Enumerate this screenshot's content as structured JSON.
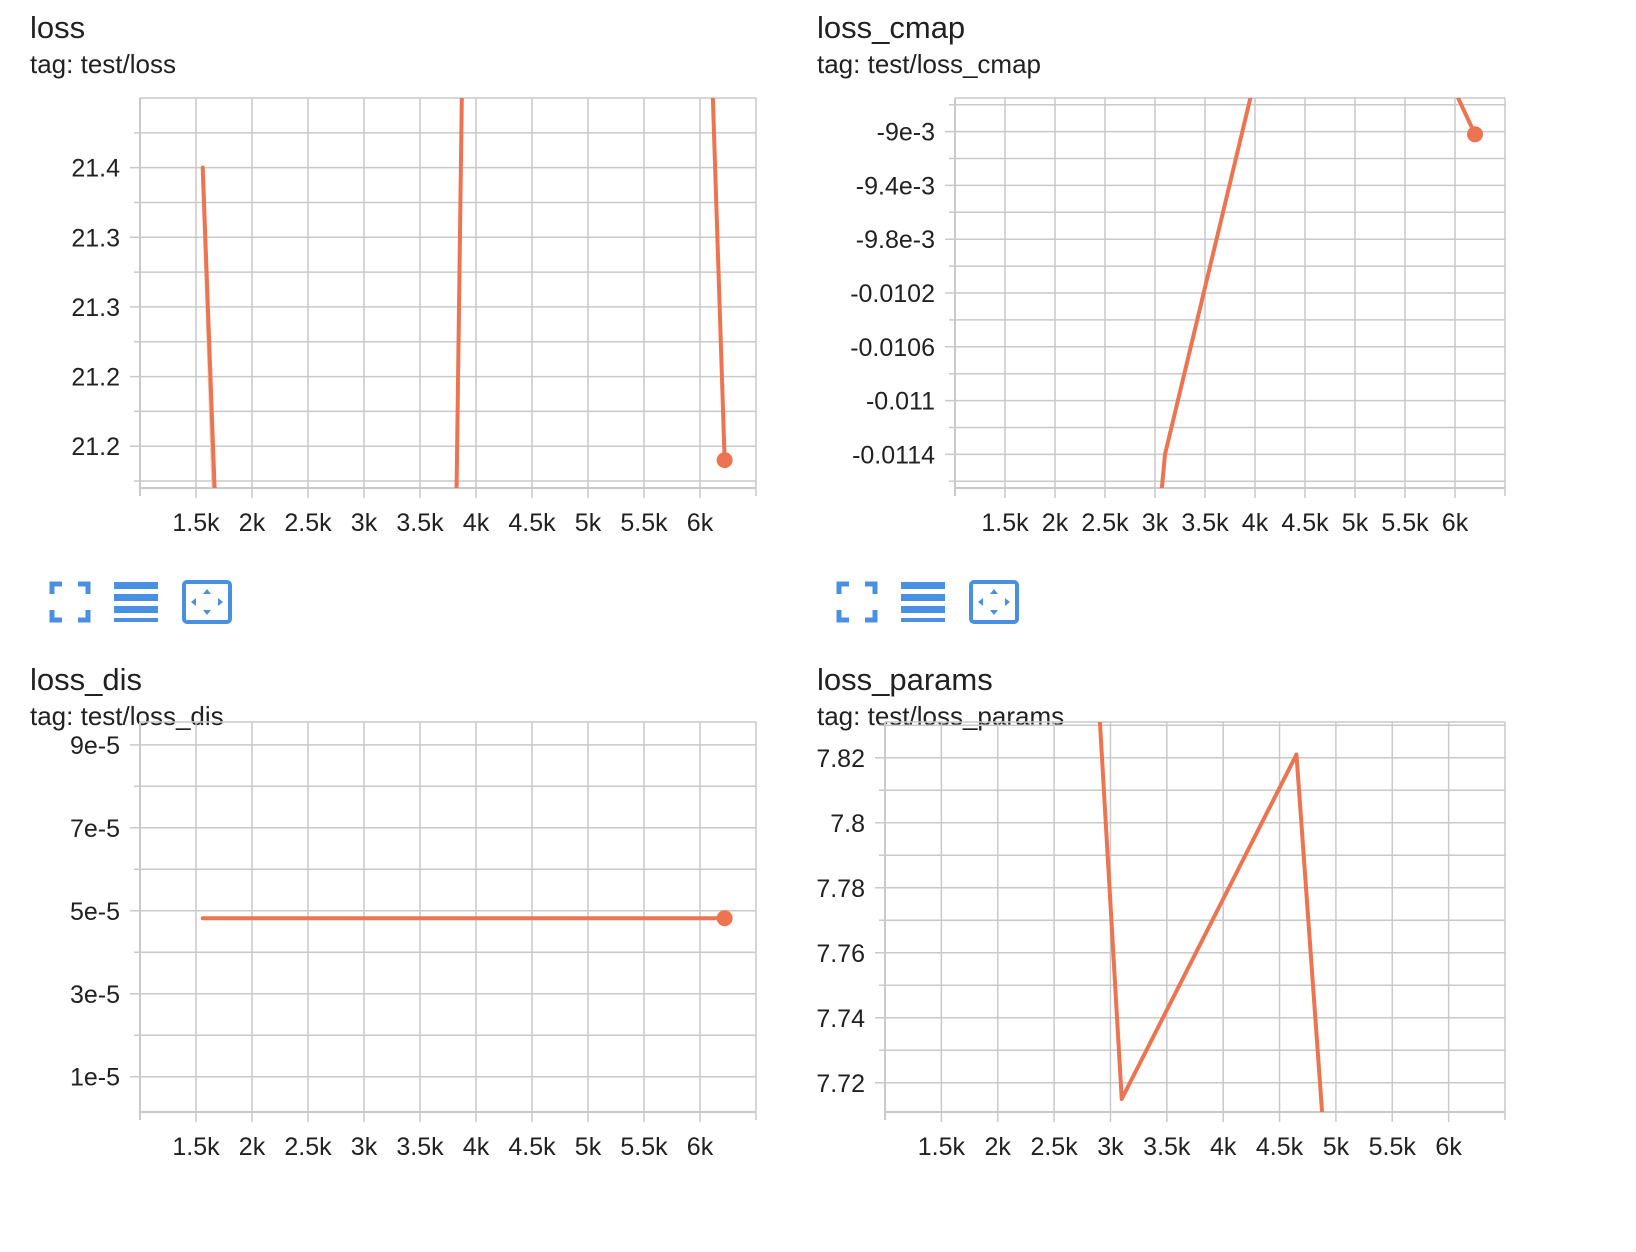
{
  "colors": {
    "series": "#ec7451",
    "series_ghost": "#f6c9b8",
    "grid": "#c9c9c9",
    "button": "#4a90e2"
  },
  "toolbar_icons": [
    "fullscreen-icon",
    "data-table-icon",
    "fit-domain-icon"
  ],
  "cards": [
    {
      "title": "loss",
      "tag": "tag: test/loss",
      "chart_data": {
        "type": "line",
        "xlim": [
          1000,
          6500
        ],
        "ylim": [
          21.16,
          21.44
        ],
        "x_ticks": [
          1500,
          2000,
          2500,
          3000,
          3500,
          4000,
          4500,
          5000,
          5500,
          6000
        ],
        "x_tick_labels": [
          "1.5k",
          "2k",
          "2.5k",
          "3k",
          "3.5k",
          "4k",
          "4.5k",
          "5k",
          "5.5k",
          "6k"
        ],
        "y_ticks": [
          21.19,
          21.24,
          21.29,
          21.34,
          21.39
        ],
        "y_tick_labels": [
          "21.2",
          "21.2",
          "21.3",
          "21.3",
          "21.4"
        ],
        "grid": true,
        "series": [
          {
            "x": [
              1560,
              1730
            ],
            "y": [
              21.39,
              21.02
            ],
            "marker": false
          },
          {
            "x": [
              3800,
              3900
            ],
            "y": [
              21.0,
              21.6
            ],
            "marker": false
          },
          {
            "x": [
              6050,
              6220
            ],
            "y": [
              21.6,
              21.18
            ],
            "marker": true
          }
        ],
        "ghost_segment": {
          "x": [
            1560,
            1680
          ],
          "y": [
            21.39,
            21.1
          ]
        }
      }
    },
    {
      "title": "loss_cmap",
      "tag": "tag: test/loss_cmap",
      "chart_data": {
        "type": "line",
        "xlim": [
          1000,
          6500
        ],
        "ylim": [
          -0.01165,
          -0.00875
        ],
        "x_ticks": [
          1500,
          2000,
          2500,
          3000,
          3500,
          4000,
          4500,
          5000,
          5500,
          6000
        ],
        "x_tick_labels": [
          "1.5k",
          "2k",
          "2.5k",
          "3k",
          "3.5k",
          "4k",
          "4.5k",
          "5k",
          "5.5k",
          "6k"
        ],
        "y_ticks": [
          -0.009,
          -0.0094,
          -0.0098,
          -0.0102,
          -0.0106,
          -0.011,
          -0.0114
        ],
        "y_tick_labels": [
          "-9e-3",
          "-9.4e-3",
          "-9.8e-3",
          "-0.0102",
          "-0.0106",
          "-0.011",
          "-0.0114"
        ],
        "grid": true,
        "series": [
          {
            "x": [
              3050,
              3100,
              3970
            ],
            "y": [
              -0.0118,
              -0.0114,
              -0.0087
            ],
            "marker": false
          },
          {
            "x": [
              6000,
              6200
            ],
            "y": [
              -0.0087,
              -0.00902
            ],
            "marker": true
          }
        ]
      }
    },
    {
      "title": "loss_dis",
      "tag": "tag: test/loss_dis",
      "chart_data": {
        "type": "line",
        "xlim": [
          1000,
          6500
        ],
        "ylim": [
          1.5e-06,
          9.55e-05
        ],
        "x_ticks": [
          1500,
          2000,
          2500,
          3000,
          3500,
          4000,
          4500,
          5000,
          5500,
          6000
        ],
        "x_tick_labels": [
          "1.5k",
          "2k",
          "2.5k",
          "3k",
          "3.5k",
          "4k",
          "4.5k",
          "5k",
          "5.5k",
          "6k"
        ],
        "y_ticks": [
          1e-05,
          3e-05,
          5e-05,
          7e-05,
          9e-05
        ],
        "y_tick_labels": [
          "1e-5",
          "3e-5",
          "5e-5",
          "7e-5",
          "9e-5"
        ],
        "grid": true,
        "series": [
          {
            "x": [
              1560,
              6220
            ],
            "y": [
              4.82e-05,
              4.82e-05
            ],
            "marker": true
          }
        ]
      }
    },
    {
      "title": "loss_params",
      "tag": "tag: test/loss_params",
      "chart_data": {
        "type": "line",
        "xlim": [
          1000,
          6500
        ],
        "ylim": [
          7.711,
          7.831
        ],
        "x_ticks": [
          1500,
          2000,
          2500,
          3000,
          3500,
          4000,
          4500,
          5000,
          5500,
          6000
        ],
        "x_tick_labels": [
          "1.5k",
          "2k",
          "2.5k",
          "3k",
          "3.5k",
          "4k",
          "4.5k",
          "5k",
          "5.5k",
          "6k"
        ],
        "y_ticks": [
          7.72,
          7.74,
          7.76,
          7.78,
          7.8,
          7.82
        ],
        "y_tick_labels": [
          "7.72",
          "7.74",
          "7.76",
          "7.78",
          "7.8",
          "7.82"
        ],
        "grid": true,
        "series": [
          {
            "x": [
              2900,
              3100,
              4650,
              4900
            ],
            "y": [
              7.835,
              7.715,
              7.821,
              7.7
            ],
            "marker": false
          }
        ]
      }
    }
  ]
}
